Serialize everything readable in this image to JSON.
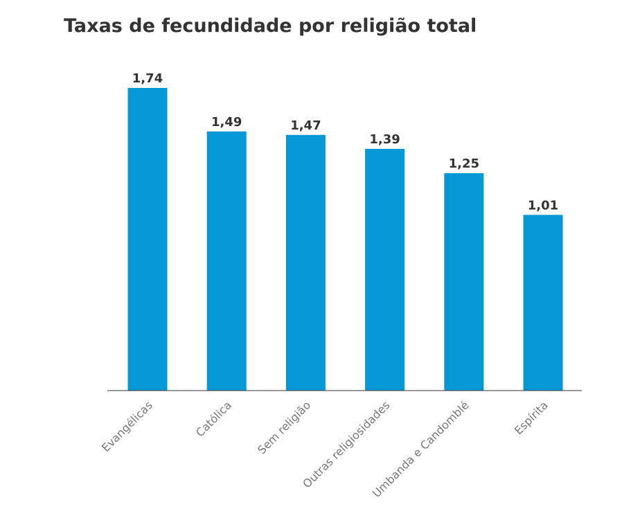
{
  "chart_data": {
    "type": "bar",
    "title": "Taxas de fecundidade por religião total",
    "categories": [
      "Evangélicas",
      "Católica",
      "Sem religião",
      "Outras religiosidades",
      "Umbanda e Candomblé",
      "Espírita"
    ],
    "values": [
      1.74,
      1.49,
      1.47,
      1.39,
      1.25,
      1.01
    ],
    "value_labels": [
      "1,74",
      "1,49",
      "1,47",
      "1,39",
      "1,25",
      "1,01"
    ],
    "xlabel": "",
    "ylabel": "",
    "ylim": [
      0,
      1.74
    ],
    "grid": false,
    "legend": "none",
    "bar_color": "#0698D6",
    "axis_color": "#333333",
    "value_label_color": "#333333",
    "category_label_color": "#777777"
  }
}
